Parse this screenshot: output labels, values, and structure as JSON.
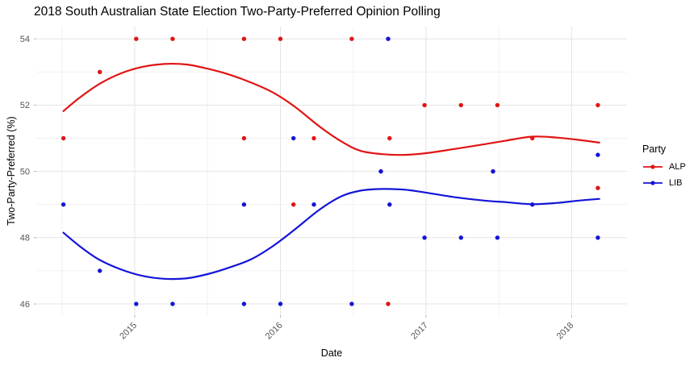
{
  "chart_data": {
    "type": "scatter+smooth",
    "title": "2018 South Australian State Election Two-Party-Preferred Opinion Polling",
    "xlabel": "Date",
    "ylabel": "Two-Party-Preferred (%)",
    "x_ticks": [
      2015,
      2016,
      2017,
      2018
    ],
    "y_ticks": [
      46,
      48,
      50,
      52,
      54
    ],
    "xlim": [
      2014.324,
      2018.38
    ],
    "ylim": [
      45.66,
      54.37
    ],
    "grid": true,
    "background": "#ffffff",
    "major_grid_color": "#e4e4e4",
    "minor_grid_color": "#f1f1f1",
    "axis_text_color": "#555555",
    "legend": {
      "title": "Party",
      "position": "right",
      "entries": [
        {
          "label": "ALP",
          "color": "#e11414"
        },
        {
          "label": "LIB",
          "color": "#1414d9"
        }
      ]
    },
    "series": [
      {
        "name": "ALP",
        "color": "#e11414",
        "points": [
          [
            2014.51,
            51
          ],
          [
            2014.76,
            53
          ],
          [
            2015.01,
            54
          ],
          [
            2015.26,
            54
          ],
          [
            2015.75,
            51
          ],
          [
            2015.75,
            54
          ],
          [
            2016.0,
            54
          ],
          [
            2016.09,
            49
          ],
          [
            2016.23,
            51
          ],
          [
            2016.49,
            54
          ],
          [
            2016.69,
            50
          ],
          [
            2016.74,
            46
          ],
          [
            2016.75,
            51
          ],
          [
            2016.99,
            52
          ],
          [
            2017.24,
            52
          ],
          [
            2017.46,
            50
          ],
          [
            2017.49,
            52
          ],
          [
            2017.73,
            51
          ],
          [
            2018.18,
            49.5
          ],
          [
            2018.18,
            52
          ]
        ],
        "smooth": [
          [
            2014.51,
            51.82
          ],
          [
            2014.62,
            52.22
          ],
          [
            2014.75,
            52.62
          ],
          [
            2014.9,
            52.95
          ],
          [
            2015.05,
            53.15
          ],
          [
            2015.2,
            53.24
          ],
          [
            2015.35,
            53.23
          ],
          [
            2015.5,
            53.1
          ],
          [
            2015.65,
            52.92
          ],
          [
            2015.8,
            52.68
          ],
          [
            2015.95,
            52.38
          ],
          [
            2016.1,
            51.95
          ],
          [
            2016.27,
            51.35
          ],
          [
            2016.42,
            50.9
          ],
          [
            2016.55,
            50.62
          ],
          [
            2016.7,
            50.52
          ],
          [
            2016.85,
            50.5
          ],
          [
            2017.0,
            50.55
          ],
          [
            2017.2,
            50.68
          ],
          [
            2017.4,
            50.82
          ],
          [
            2017.55,
            50.93
          ],
          [
            2017.73,
            51.05
          ],
          [
            2017.9,
            51.02
          ],
          [
            2018.05,
            50.95
          ],
          [
            2018.19,
            50.87
          ]
        ]
      },
      {
        "name": "LIB",
        "color": "#1414d9",
        "points": [
          [
            2014.51,
            49
          ],
          [
            2014.76,
            47
          ],
          [
            2015.01,
            46
          ],
          [
            2015.26,
            46
          ],
          [
            2015.75,
            49
          ],
          [
            2015.75,
            46
          ],
          [
            2016.0,
            46
          ],
          [
            2016.09,
            51
          ],
          [
            2016.23,
            49
          ],
          [
            2016.49,
            46
          ],
          [
            2016.69,
            50
          ],
          [
            2016.74,
            54
          ],
          [
            2016.75,
            49
          ],
          [
            2016.99,
            48
          ],
          [
            2017.24,
            48
          ],
          [
            2017.46,
            50
          ],
          [
            2017.49,
            48
          ],
          [
            2017.73,
            49
          ],
          [
            2018.18,
            48
          ],
          [
            2018.18,
            50.5
          ]
        ],
        "smooth": [
          [
            2014.51,
            48.15
          ],
          [
            2014.62,
            47.75
          ],
          [
            2014.75,
            47.35
          ],
          [
            2014.9,
            47.05
          ],
          [
            2015.05,
            46.85
          ],
          [
            2015.2,
            46.76
          ],
          [
            2015.35,
            46.77
          ],
          [
            2015.5,
            46.9
          ],
          [
            2015.65,
            47.1
          ],
          [
            2015.8,
            47.35
          ],
          [
            2015.95,
            47.75
          ],
          [
            2016.1,
            48.25
          ],
          [
            2016.27,
            48.85
          ],
          [
            2016.42,
            49.25
          ],
          [
            2016.55,
            49.42
          ],
          [
            2016.7,
            49.47
          ],
          [
            2016.85,
            49.45
          ],
          [
            2017.0,
            49.36
          ],
          [
            2017.2,
            49.22
          ],
          [
            2017.4,
            49.12
          ],
          [
            2017.55,
            49.07
          ],
          [
            2017.73,
            49.01
          ],
          [
            2017.9,
            49.05
          ],
          [
            2018.05,
            49.12
          ],
          [
            2018.19,
            49.17
          ]
        ]
      }
    ]
  }
}
